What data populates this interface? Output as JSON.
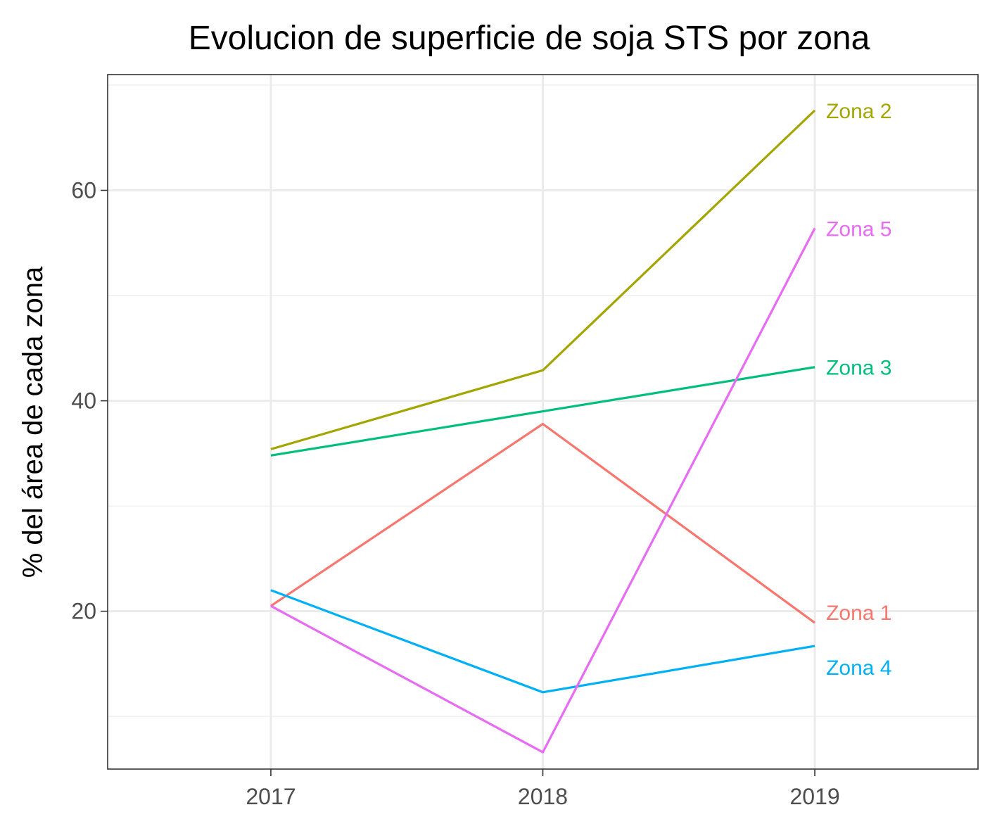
{
  "chart_data": {
    "type": "line",
    "title": "Evolucion de superficie de soja STS por zona",
    "xlabel": "",
    "ylabel": "% del área de cada zona",
    "x": [
      2017,
      2018,
      2019
    ],
    "xlim": [
      2016.4,
      2019.6
    ],
    "ylim": [
      5,
      71
    ],
    "yticks": [
      20,
      40,
      60
    ],
    "y_minor_ticks": [
      10,
      30,
      50,
      70
    ],
    "grid": true,
    "legend": "direct-labels-right",
    "series": [
      {
        "name": "Zona 1",
        "color": "#F8766D",
        "values": [
          20.5,
          37.8,
          18.9
        ]
      },
      {
        "name": "Zona 2",
        "color": "#A3A500",
        "values": [
          35.4,
          42.9,
          67.6
        ]
      },
      {
        "name": "Zona 3",
        "color": "#00BF7D",
        "values": [
          34.8,
          39.0,
          43.2
        ]
      },
      {
        "name": "Zona 4",
        "color": "#00B0F6",
        "values": [
          22.0,
          12.3,
          16.7
        ]
      },
      {
        "name": "Zona 5",
        "color": "#E76BF3",
        "values": [
          20.5,
          6.6,
          56.4
        ]
      }
    ]
  }
}
